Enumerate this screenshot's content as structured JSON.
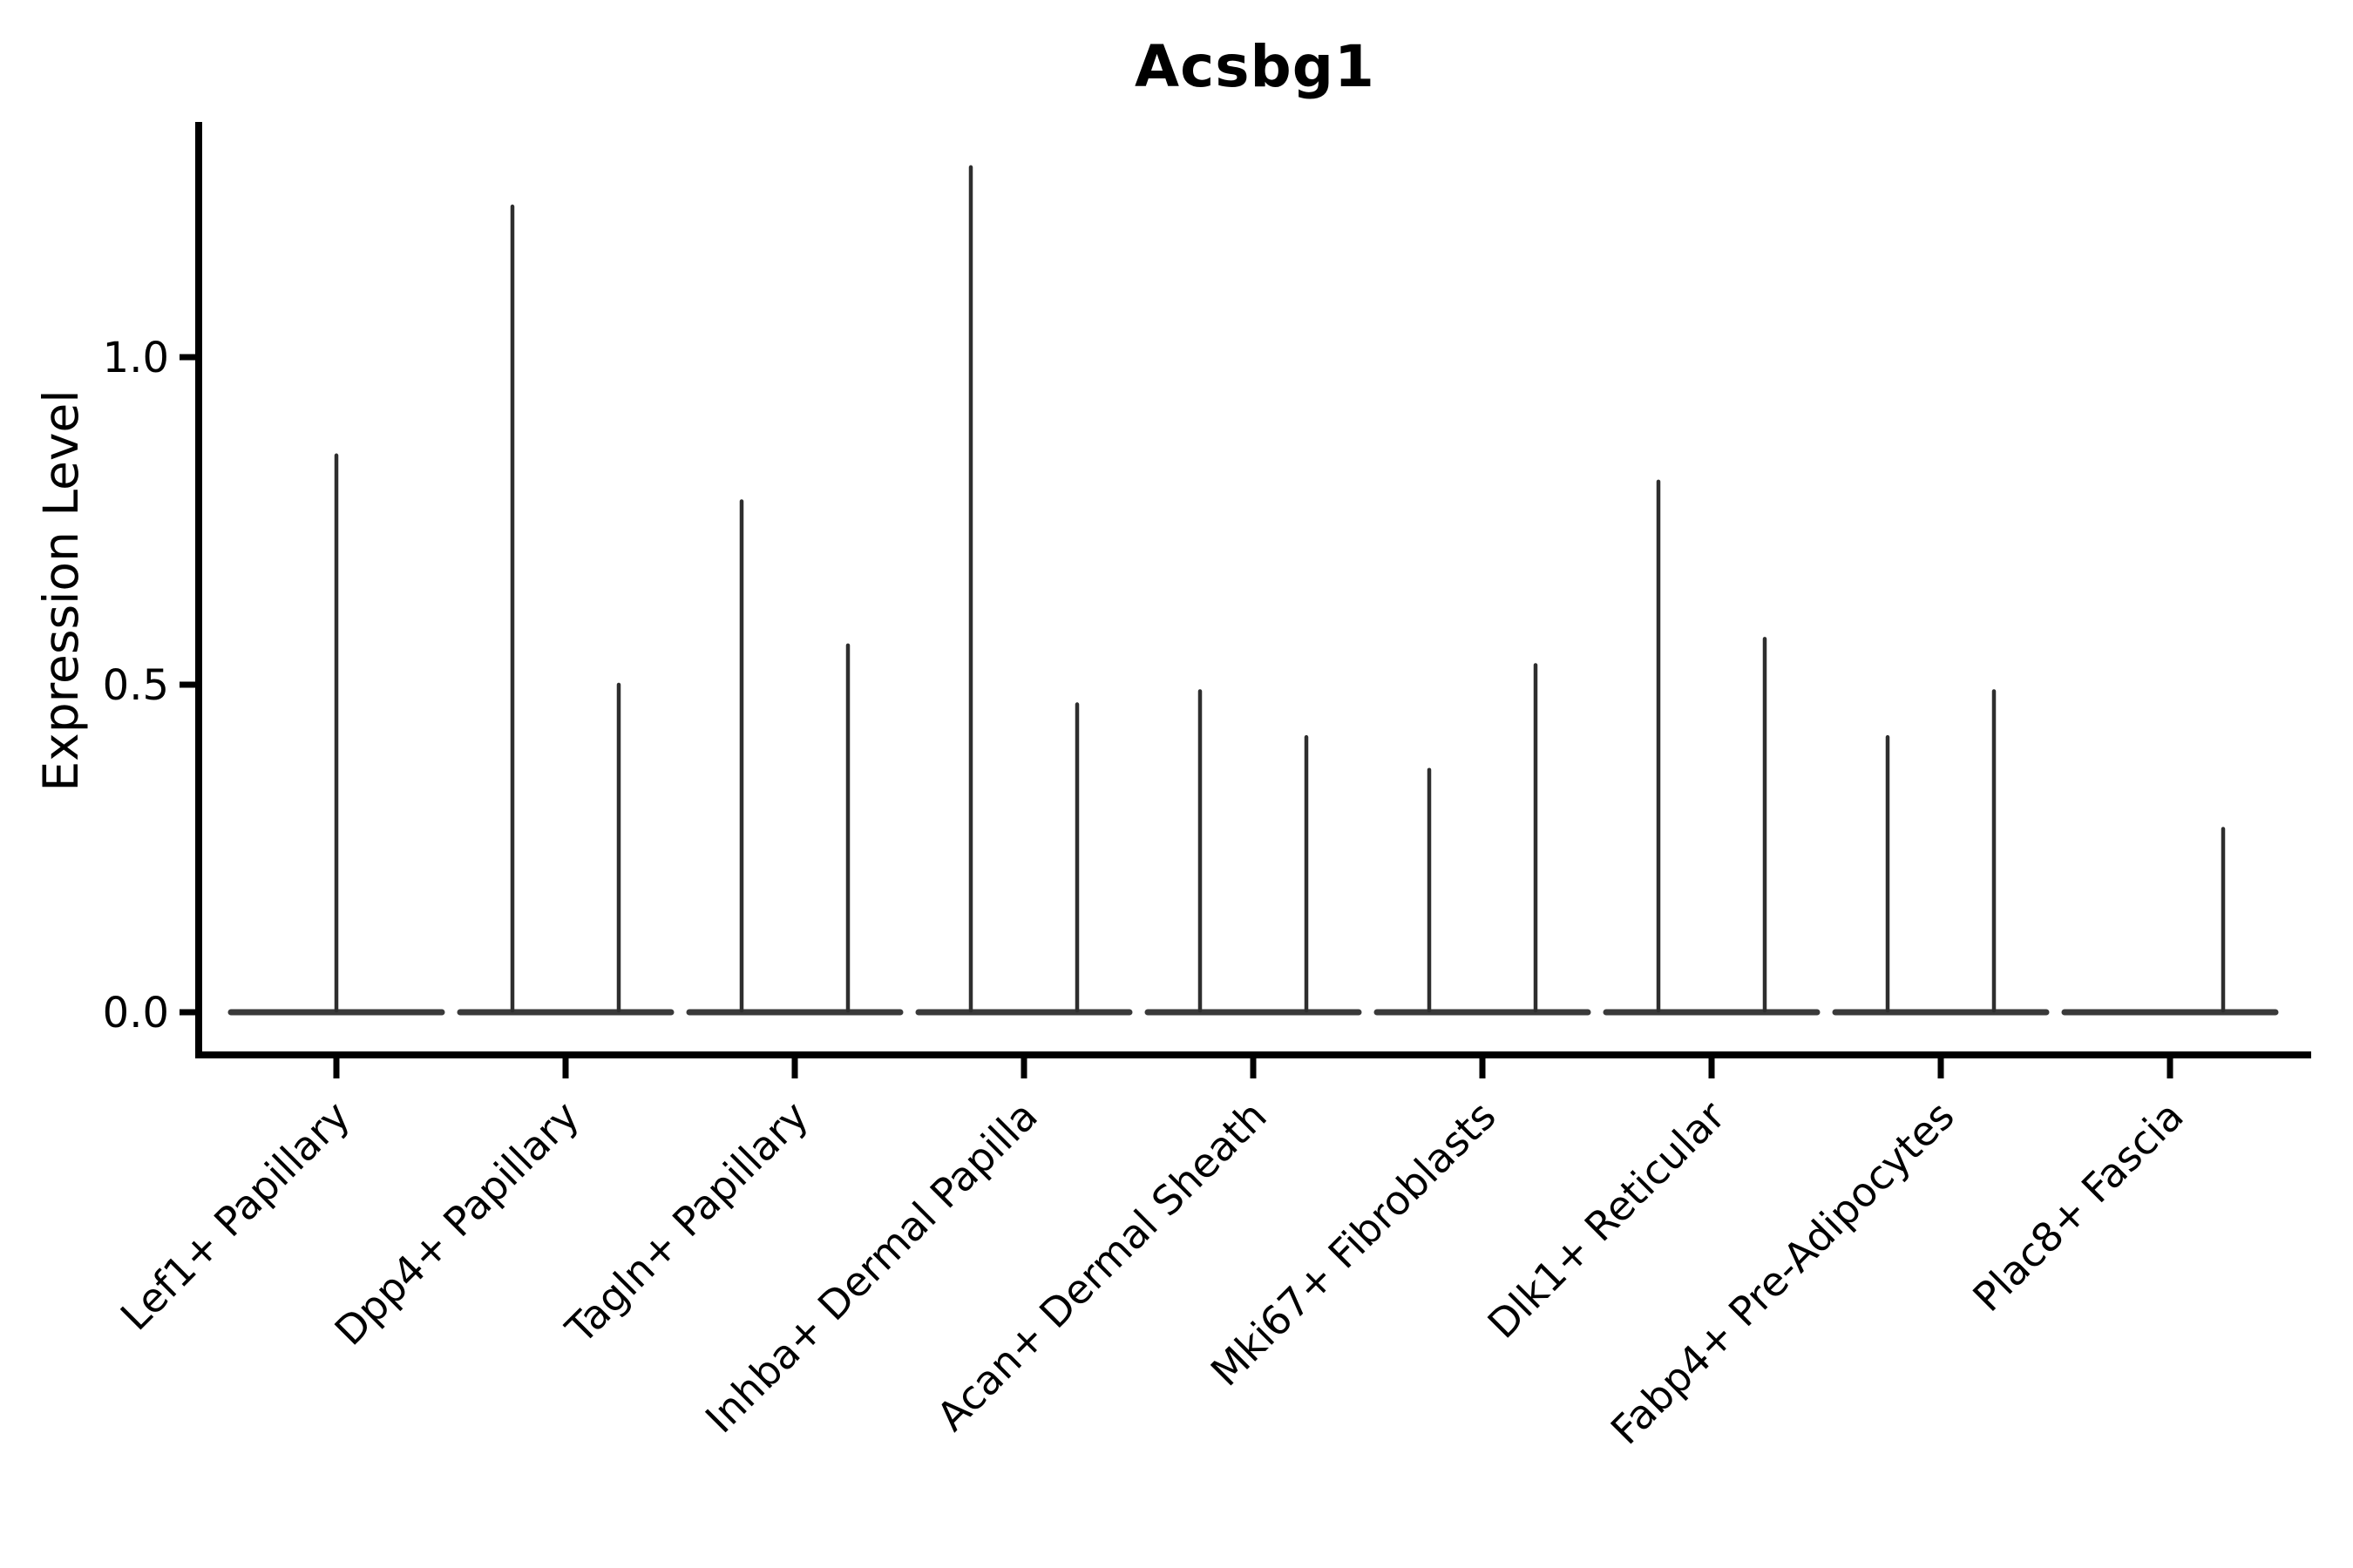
{
  "title": "Acsbg1",
  "y_axis_label": "Expression Level",
  "chart_data": {
    "type": "violin",
    "title": "Acsbg1",
    "ylabel": "Expression Level",
    "xlabel": "",
    "legend": "none",
    "grid": false,
    "background": "#ffffff",
    "ylim": [
      -0.065,
      1.36
    ],
    "yticks": [
      {
        "value": 0.0,
        "label": "0.0"
      },
      {
        "value": 0.5,
        "label": "0.5"
      },
      {
        "value": 1.0,
        "label": "1.0"
      }
    ],
    "categories": [
      "Lef1+ Papillary",
      "Dpp4+ Papillary",
      "Tagln+ Papillary",
      "Inhba+ Dermal Papilla",
      "Acan+ Dermal Sheath",
      "Mki67+ Fibroblasts",
      "Dlk1+ Reticular",
      "Fabp4+ Pre-Adipocytes",
      "Plac8+ Fascia"
    ],
    "baseline_value": 0.0,
    "violin_shape_note": "needle violins: wide flat base at expression 0 with thin vertical density tail up to the group maximum; two dodged groups per category unless listed as center-only",
    "violins": [
      {
        "category": "Lef1+ Papillary",
        "spikes": [
          {
            "dodge": 0,
            "max": 0.85
          }
        ]
      },
      {
        "category": "Dpp4+ Papillary",
        "spikes": [
          {
            "dodge": -1,
            "max": 1.23
          },
          {
            "dodge": 1,
            "max": 0.5
          }
        ]
      },
      {
        "category": "Tagln+ Papillary",
        "spikes": [
          {
            "dodge": -1,
            "max": 0.78
          },
          {
            "dodge": 1,
            "max": 0.56
          }
        ]
      },
      {
        "category": "Inhba+ Dermal Papilla",
        "spikes": [
          {
            "dodge": -1,
            "max": 1.29
          },
          {
            "dodge": 1,
            "max": 0.47
          }
        ]
      },
      {
        "category": "Acan+ Dermal Sheath",
        "spikes": [
          {
            "dodge": -1,
            "max": 0.49
          },
          {
            "dodge": 1,
            "max": 0.42
          }
        ]
      },
      {
        "category": "Mki67+ Fibroblasts",
        "spikes": [
          {
            "dodge": -1,
            "max": 0.37
          },
          {
            "dodge": 1,
            "max": 0.53
          }
        ]
      },
      {
        "category": "Dlk1+ Reticular",
        "spikes": [
          {
            "dodge": -1,
            "max": 0.81
          },
          {
            "dodge": 1,
            "max": 0.57
          }
        ]
      },
      {
        "category": "Fabp4+ Pre-Adipocytes",
        "spikes": [
          {
            "dodge": -1,
            "max": 0.42
          },
          {
            "dodge": 1,
            "max": 0.49
          }
        ]
      },
      {
        "category": "Plac8+ Fascia",
        "spikes": [
          {
            "dodge": 1,
            "max": 0.28
          }
        ]
      }
    ],
    "colors": {
      "violin_line": "#2e2e2e",
      "violin_base": "#3a3a3a",
      "axis": "#000000",
      "text": "#000000",
      "background": "#ffffff"
    }
  }
}
